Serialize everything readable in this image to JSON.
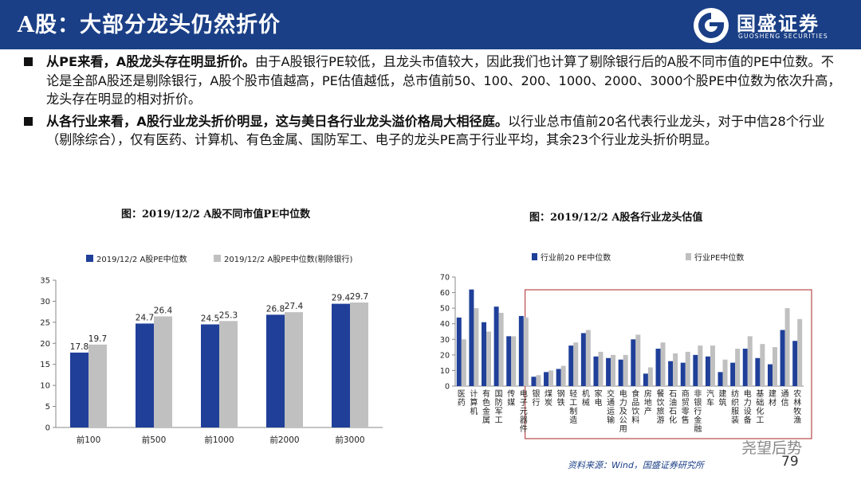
{
  "header": {
    "title": "A股：大部分龙头仍然折价",
    "logo_cn": "国盛证券",
    "logo_en": "GUOSHENG SECURITIES"
  },
  "paragraphs": [
    {
      "bold": "从PE来看，A股龙头存在明显折价。",
      "text": "由于A股银行PE较低，且龙头市值较大，因此我们也计算了剔除银行后的A股不同市值的PE中位数。不论是全部A股还是剔除银行，A股个股市值越高，PE估值越低，总市值前50、100、200、1000、2000、3000个股PE中位数为依次升高，龙头存在明显的相对折价。"
    },
    {
      "bold": "从各行业来看，A股行业龙头折价明显，这与美日各行业龙头溢价格局大相径庭。",
      "text": "以行业总市值前20名代表行业龙头，对于中信28个行业（剔除综合），仅有医药、计算机、有色金属、国防军工、电子的龙头PE高于行业平均，其余23个行业龙头折价明显。"
    }
  ],
  "footer": {
    "source": "资料来源：Wind，国盛证券研究所",
    "watermark": "尧望后势",
    "page": "79"
  },
  "colors": {
    "navy": "#1a3f86",
    "series1": "#1f3f99",
    "series2": "#c0c0c0",
    "box": "#b94a4a"
  },
  "chart_data": [
    {
      "type": "bar",
      "title": "图：2019/12/2 A股不同市值PE中位数",
      "categories": [
        "前100",
        "前500",
        "前1000",
        "前2000",
        "前3000"
      ],
      "series": [
        {
          "name": "2019/12/2  A股PE中位数",
          "values": [
            17.8,
            24.7,
            24.5,
            26.8,
            29.4
          ]
        },
        {
          "name": "2019/12/2  A股PE中位数(剔除银行)",
          "values": [
            19.7,
            26.4,
            25.3,
            27.4,
            29.7
          ]
        }
      ],
      "ylim": [
        0,
        35
      ],
      "yticks": [
        0,
        5,
        10,
        15,
        20,
        25,
        30,
        35
      ],
      "legend": "top",
      "grid": false
    },
    {
      "type": "bar",
      "title": "图：2019/12/2 A股各行业龙头估值",
      "categories": [
        "医药",
        "计算机",
        "有色金属",
        "国防军工",
        "传媒",
        "电子元器件",
        "银行",
        "煤炭",
        "钢铁",
        "轻工制造",
        "机械",
        "家电",
        "交通运输",
        "电力及公用",
        "食品饮料",
        "房地产",
        "餐饮旅游",
        "石油石化",
        "商贸零售",
        "非银行金融",
        "汽车",
        "建筑",
        "纺织服装",
        "电力设备",
        "基础化工",
        "建材",
        "通信",
        "农林牧渔"
      ],
      "series": [
        {
          "name": "行业前20 PE中位数",
          "values": [
            44,
            62,
            41,
            51,
            32,
            45,
            6,
            9,
            11,
            26,
            34,
            19,
            18,
            17,
            30,
            8,
            24,
            16,
            15,
            20,
            19,
            9,
            15,
            24,
            18,
            14,
            36,
            29
          ]
        },
        {
          "name": "行业PE中位数",
          "values": [
            30,
            50,
            35,
            47,
            32,
            44,
            7,
            10,
            13,
            28,
            36,
            22,
            20,
            20,
            33,
            12,
            28,
            21,
            22,
            26,
            26,
            17,
            24,
            32,
            27,
            25,
            50,
            43
          ]
        }
      ],
      "ylim": [
        0,
        70
      ],
      "yticks": [
        0,
        10,
        20,
        30,
        40,
        50,
        60,
        70
      ],
      "legend": "top",
      "grid": false
    }
  ]
}
